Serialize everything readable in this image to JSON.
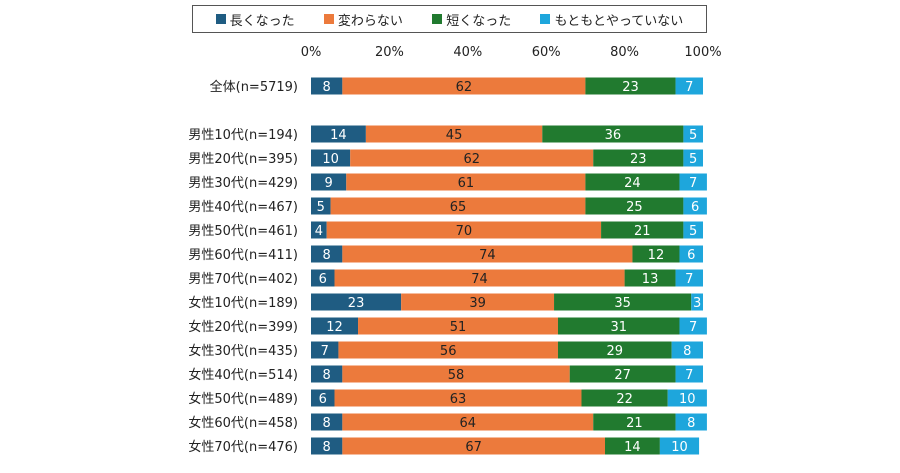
{
  "chart_data": {
    "type": "bar",
    "orientation": "horizontal",
    "stacked": true,
    "normalized_percent": true,
    "title": "",
    "xlabel": "",
    "ylabel": "",
    "xlim": [
      0,
      100
    ],
    "x_ticks": [
      "0%",
      "20%",
      "40%",
      "60%",
      "80%",
      "100%"
    ],
    "legend_position": "top",
    "categories": [
      "全体(n=5719)",
      "男性10代(n=194)",
      "男性20代(n=395)",
      "男性30代(n=429)",
      "男性40代(n=467)",
      "男性50代(n=461)",
      "男性60代(n=411)",
      "男性70代(n=402)",
      "女性10代(n=189)",
      "女性20代(n=399)",
      "女性30代(n=435)",
      "女性40代(n=514)",
      "女性50代(n=489)",
      "女性60代(n=458)",
      "女性70代(n=476)"
    ],
    "series": [
      {
        "name": "長くなった",
        "color": "#1f5c82",
        "values": [
          8,
          14,
          10,
          9,
          5,
          4,
          8,
          6,
          23,
          12,
          7,
          8,
          6,
          8,
          8
        ]
      },
      {
        "name": "変わらない",
        "color": "#ec7a3c",
        "values": [
          62,
          45,
          62,
          61,
          65,
          70,
          74,
          74,
          39,
          51,
          56,
          58,
          63,
          64,
          67
        ]
      },
      {
        "name": "短くなった",
        "color": "#217a2f",
        "values": [
          23,
          36,
          23,
          24,
          25,
          21,
          12,
          13,
          35,
          31,
          29,
          27,
          22,
          21,
          14
        ]
      },
      {
        "name": "もともとやっていない",
        "color": "#1ea6dc",
        "values": [
          7,
          5,
          5,
          7,
          6,
          5,
          6,
          7,
          3,
          7,
          8,
          7,
          10,
          8,
          10
        ]
      }
    ]
  }
}
